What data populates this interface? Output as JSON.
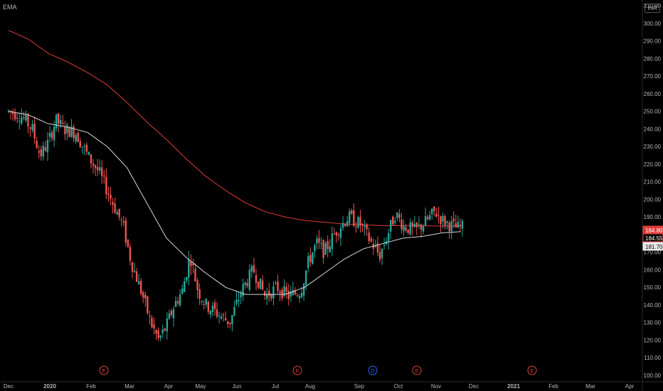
{
  "indicator_label": "EMA",
  "currency_label": "INR",
  "colors": {
    "background": "#000000",
    "up_candle": "#26a69a",
    "down_candle": "#ef5350",
    "ema_long": "#e23b3b",
    "ema_short": "#d6d6d6",
    "axis_text": "#b2b5be",
    "event_earnings": "#e0433b",
    "event_dividend": "#2962ff"
  },
  "chart_data": {
    "type": "candlestick",
    "title": "",
    "ylabel": "",
    "ylim": [
      100,
      310
    ],
    "y_ticks": [
      "310.00",
      "300.00",
      "290.00",
      "280.00",
      "270.00",
      "260.00",
      "250.00",
      "240.00",
      "230.00",
      "220.00",
      "210.00",
      "200.00",
      "190.00",
      "180.00",
      "170.00",
      "160.00",
      "150.00",
      "140.00",
      "130.00",
      "120.00",
      "110.00",
      "100.00"
    ],
    "x_ticks": [
      "Dec",
      "2020",
      "Feb",
      "Mar",
      "Apr",
      "May",
      "Jun",
      "Jul",
      "Aug",
      "Sep",
      "Oct",
      "Nov",
      "Dec",
      "2021",
      "Feb",
      "Mar",
      "Apr"
    ],
    "price_labels": [
      {
        "text": "184.80",
        "value": 184.8,
        "style": "ema_long"
      },
      {
        "text": "184.55",
        "value": 184.55,
        "style": "last"
      },
      {
        "text": "181.70",
        "value": 181.7,
        "style": "ema_short"
      }
    ],
    "events": [
      {
        "type": "E",
        "date_index": 2
      },
      {
        "type": "E",
        "date_index": 8
      },
      {
        "type": "D",
        "date_index": 9
      },
      {
        "type": "E",
        "date_index": 10
      },
      {
        "type": "E",
        "date_index": 14
      }
    ],
    "price_path": [
      [
        0,
        250
      ],
      [
        0.3,
        248
      ],
      [
        0.6,
        240
      ],
      [
        0.8,
        225
      ],
      [
        1.0,
        232
      ],
      [
        1.2,
        245
      ],
      [
        1.4,
        240
      ],
      [
        1.7,
        238
      ],
      [
        2.0,
        225
      ],
      [
        2.3,
        215
      ],
      [
        2.6,
        200
      ],
      [
        2.9,
        185
      ],
      [
        3.1,
        165
      ],
      [
        3.4,
        145
      ],
      [
        3.6,
        130
      ],
      [
        3.8,
        120
      ],
      [
        4.0,
        128
      ],
      [
        4.2,
        140
      ],
      [
        4.4,
        148
      ],
      [
        4.6,
        168
      ],
      [
        4.8,
        148
      ],
      [
        5.0,
        140
      ],
      [
        5.3,
        135
      ],
      [
        5.6,
        130
      ],
      [
        5.9,
        148
      ],
      [
        6.2,
        160
      ],
      [
        6.5,
        145
      ],
      [
        6.8,
        150
      ],
      [
        7.1,
        145
      ],
      [
        7.4,
        148
      ],
      [
        7.6,
        165
      ],
      [
        7.8,
        175
      ],
      [
        8.0,
        170
      ],
      [
        8.3,
        182
      ],
      [
        8.6,
        190
      ],
      [
        8.9,
        186
      ],
      [
        9.2,
        175
      ],
      [
        9.4,
        168
      ],
      [
        9.6,
        180
      ],
      [
        9.8,
        192
      ],
      [
        10.0,
        185
      ],
      [
        10.3,
        182
      ],
      [
        10.6,
        188
      ],
      [
        10.8,
        193
      ],
      [
        11.0,
        188
      ],
      [
        11.3,
        184
      ],
      [
        11.5,
        184
      ]
    ],
    "ema_short_path": [
      [
        0,
        250
      ],
      [
        0.5,
        248
      ],
      [
        1.0,
        243
      ],
      [
        1.5,
        241
      ],
      [
        2.0,
        238
      ],
      [
        2.5,
        230
      ],
      [
        3.0,
        218
      ],
      [
        3.5,
        198
      ],
      [
        4.0,
        178
      ],
      [
        4.5,
        167
      ],
      [
        5.0,
        158
      ],
      [
        5.5,
        150
      ],
      [
        6.0,
        146
      ],
      [
        6.5,
        146
      ],
      [
        7.0,
        146
      ],
      [
        7.5,
        150
      ],
      [
        8.0,
        158
      ],
      [
        8.5,
        166
      ],
      [
        9.0,
        172
      ],
      [
        9.5,
        175
      ],
      [
        10.0,
        178
      ],
      [
        10.5,
        179
      ],
      [
        11.0,
        181
      ],
      [
        11.5,
        181.7
      ]
    ],
    "ema_long_path": [
      [
        0,
        296
      ],
      [
        0.5,
        291
      ],
      [
        1.0,
        283
      ],
      [
        1.5,
        278
      ],
      [
        2.0,
        272
      ],
      [
        2.5,
        265
      ],
      [
        3.0,
        255
      ],
      [
        3.5,
        244
      ],
      [
        4.0,
        234
      ],
      [
        4.5,
        223
      ],
      [
        5.0,
        213
      ],
      [
        5.5,
        205
      ],
      [
        6.0,
        198
      ],
      [
        6.5,
        193
      ],
      [
        7.0,
        190
      ],
      [
        7.5,
        188
      ],
      [
        8.0,
        187
      ],
      [
        8.5,
        186
      ],
      [
        9.0,
        185.5
      ],
      [
        9.5,
        185
      ],
      [
        10.0,
        185
      ],
      [
        10.5,
        184.9
      ],
      [
        11.0,
        184.8
      ],
      [
        11.5,
        184.8
      ]
    ]
  }
}
